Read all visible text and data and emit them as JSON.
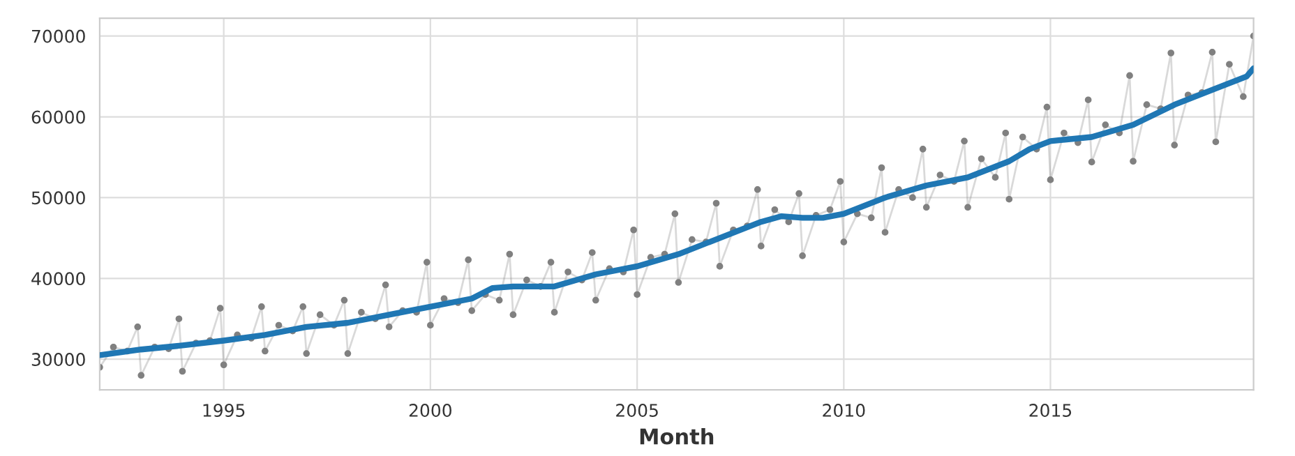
{
  "chart_data": {
    "type": "line",
    "xlabel": "Month",
    "xlim": [
      "1992-01",
      "2019-12"
    ],
    "xticks": [
      {
        "value": "1995-01",
        "label": "1995"
      },
      {
        "value": "2000-01",
        "label": "2000"
      },
      {
        "value": "2005-01",
        "label": "2005"
      },
      {
        "value": "2010-01",
        "label": "2010"
      },
      {
        "value": "2015-01",
        "label": "2015"
      }
    ],
    "ylim": [
      26200,
      72200
    ],
    "yticks": [
      30000,
      40000,
      50000,
      60000,
      70000
    ],
    "grid": true,
    "legend": false,
    "series": [
      {
        "color": "#808080",
        "marker": "circle",
        "line_style": "solid",
        "x": [
          "1992-01",
          "1992-05",
          "1992-09",
          "1992-12",
          "1993-01",
          "1993-05",
          "1993-09",
          "1993-12",
          "1994-01",
          "1994-05",
          "1994-09",
          "1994-12",
          "1995-01",
          "1995-05",
          "1995-09",
          "1995-12",
          "1996-01",
          "1996-05",
          "1996-09",
          "1996-12",
          "1997-01",
          "1997-05",
          "1997-09",
          "1997-12",
          "1998-01",
          "1998-05",
          "1998-09",
          "1998-12",
          "1999-01",
          "1999-05",
          "1999-09",
          "1999-12",
          "2000-01",
          "2000-05",
          "2000-09",
          "2000-12",
          "2001-01",
          "2001-05",
          "2001-09",
          "2001-12",
          "2002-01",
          "2002-05",
          "2002-09",
          "2002-12",
          "2003-01",
          "2003-05",
          "2003-09",
          "2003-12",
          "2004-01",
          "2004-05",
          "2004-09",
          "2004-12",
          "2005-01",
          "2005-05",
          "2005-09",
          "2005-12",
          "2006-01",
          "2006-05",
          "2006-09",
          "2006-12",
          "2007-01",
          "2007-05",
          "2007-09",
          "2007-12",
          "2008-01",
          "2008-05",
          "2008-09",
          "2008-12",
          "2009-01",
          "2009-05",
          "2009-09",
          "2009-12",
          "2010-01",
          "2010-05",
          "2010-09",
          "2010-12",
          "2011-01",
          "2011-05",
          "2011-09",
          "2011-12",
          "2012-01",
          "2012-05",
          "2012-09",
          "2012-12",
          "2013-01",
          "2013-05",
          "2013-09",
          "2013-12",
          "2014-01",
          "2014-05",
          "2014-09",
          "2014-12",
          "2015-01",
          "2015-05",
          "2015-09",
          "2015-12",
          "2016-01",
          "2016-05",
          "2016-09",
          "2016-12",
          "2017-01",
          "2017-05",
          "2017-09",
          "2017-12",
          "2018-01",
          "2018-05",
          "2018-09",
          "2018-12",
          "2019-01",
          "2019-05",
          "2019-09",
          "2019-12"
        ],
        "values": [
          29000,
          31500,
          31000,
          34000,
          28000,
          31500,
          31300,
          35000,
          28500,
          32000,
          32300,
          36300,
          29300,
          33000,
          32600,
          36500,
          31000,
          34200,
          33500,
          36500,
          30700,
          35500,
          34200,
          37300,
          30700,
          35800,
          35000,
          39200,
          34000,
          36000,
          35800,
          42000,
          34200,
          37500,
          37000,
          42300,
          36000,
          38000,
          37300,
          43000,
          35500,
          39800,
          39000,
          42000,
          35800,
          40800,
          39800,
          43200,
          37300,
          41200,
          40800,
          46000,
          38000,
          42600,
          43000,
          48000,
          39500,
          44800,
          44500,
          49300,
          41500,
          46000,
          46500,
          51000,
          44000,
          48500,
          47000,
          50500,
          42800,
          47800,
          48500,
          52000,
          44500,
          48000,
          47500,
          53700,
          45700,
          51000,
          50000,
          56000,
          48800,
          52800,
          52000,
          57000,
          48800,
          54800,
          52500,
          58000,
          49800,
          57500,
          56000,
          61200,
          52200,
          58000,
          56800,
          62100,
          54400,
          59000,
          58000,
          65100,
          54500,
          61500,
          61000,
          67900,
          56500,
          62700,
          63000,
          68000,
          56900,
          66500,
          62500,
          70000
        ]
      },
      {
        "color": "#1f77b4",
        "marker": "none",
        "line_style": "solid",
        "x": [
          "1992-01",
          "1993-01",
          "1994-01",
          "1995-01",
          "1996-01",
          "1997-01",
          "1998-01",
          "1999-01",
          "2000-01",
          "2001-01",
          "2001-07",
          "2002-01",
          "2003-01",
          "2004-01",
          "2005-01",
          "2006-01",
          "2007-01",
          "2008-01",
          "2008-07",
          "2009-01",
          "2009-07",
          "2010-01",
          "2011-01",
          "2012-01",
          "2013-01",
          "2014-01",
          "2014-07",
          "2015-01",
          "2016-01",
          "2017-01",
          "2018-01",
          "2019-01",
          "2019-10",
          "2019-12"
        ],
        "values": [
          30500,
          31200,
          31700,
          32300,
          33000,
          34000,
          34500,
          35500,
          36500,
          37500,
          38800,
          39000,
          39000,
          40500,
          41500,
          43000,
          45000,
          47000,
          47700,
          47500,
          47500,
          48000,
          50000,
          51500,
          52500,
          54500,
          56000,
          57000,
          57500,
          59000,
          61500,
          63500,
          65000,
          66000
        ]
      }
    ]
  }
}
